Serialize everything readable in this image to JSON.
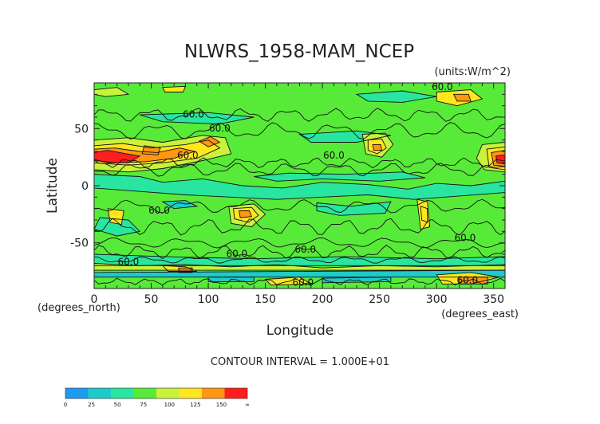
{
  "chart_data": {
    "type": "heatmap",
    "subtype": "filled-contour map",
    "title": "NLWRS_1958-MAM_NCEP",
    "units_label": "(units:W/m^2)",
    "xlabel": "Longitude",
    "ylabel": "Latitude",
    "x_unit_label": "(degrees_east)",
    "y_unit_label": "(degrees_north)",
    "xlim": [
      0,
      360
    ],
    "ylim": [
      -90,
      90
    ],
    "x_ticks": [
      0,
      50,
      100,
      150,
      200,
      250,
      300,
      350
    ],
    "y_ticks": [
      -50,
      0,
      50
    ],
    "contour_interval_text": "CONTOUR INTERVAL = 1.000E+01",
    "contour_labels": [
      {
        "text": "60.0",
        "x": 87,
        "y": 62
      },
      {
        "text": "60.0",
        "x": 110,
        "y": 50
      },
      {
        "text": "60.0",
        "x": 82,
        "y": 26
      },
      {
        "text": "60.0",
        "x": 210,
        "y": 26
      },
      {
        "text": "60.0",
        "x": 57,
        "y": -22
      },
      {
        "text": "60.0",
        "x": 325,
        "y": -46
      },
      {
        "text": "60.0",
        "x": 30,
        "y": -67
      },
      {
        "text": "60.0",
        "x": 125,
        "y": -60
      },
      {
        "text": "60.0",
        "x": 185,
        "y": -56
      },
      {
        "text": "60.0",
        "x": 183,
        "y": -85
      },
      {
        "text": "60.0",
        "x": 305,
        "y": 86
      },
      {
        "text": "60.0",
        "x": 327,
        "y": -83
      }
    ],
    "colorbar": {
      "ticks": [
        "0",
        "25",
        "50",
        "75",
        "100",
        "125",
        "150",
        "∞"
      ],
      "bins": [
        {
          "from": "-∞",
          "to": "0",
          "color": "#1e9bf0"
        },
        {
          "from": "0",
          "to": "25",
          "color": "#1ecbc8"
        },
        {
          "from": "25",
          "to": "50",
          "color": "#28e6a0"
        },
        {
          "from": "50",
          "to": "75",
          "color": "#58ea38"
        },
        {
          "from": "75",
          "to": "100",
          "color": "#c8f23c"
        },
        {
          "from": "100",
          "to": "125",
          "color": "#ffe61e"
        },
        {
          "from": "125",
          "to": "150",
          "color": "#ff9614"
        },
        {
          "from": "150",
          "to": "∞",
          "color": "#ff1e1e"
        }
      ]
    },
    "background_value_range": [
      50,
      75
    ],
    "features": [
      {
        "name": "north-africa-arabia-maximum",
        "center": [
          15,
          25
        ],
        "peak": 160
      },
      {
        "name": "tibet-high-band",
        "center": [
          60,
          30
        ],
        "peak": 130
      },
      {
        "name": "east-asia-patch",
        "center": [
          100,
          40
        ],
        "peak": 120
      },
      {
        "name": "north-america-west",
        "center": [
          245,
          33
        ],
        "peak": 115
      },
      {
        "name": "sahara-east-edge",
        "center": [
          355,
          23
        ],
        "peak": 160
      },
      {
        "name": "australia-patch",
        "center": [
          132,
          -25
        ],
        "peak": 115
      },
      {
        "name": "southern-africa-patch",
        "center": [
          20,
          -27
        ],
        "peak": 100
      },
      {
        "name": "andes-patch",
        "center": [
          291,
          -23
        ],
        "peak": 100
      },
      {
        "name": "tropical-band",
        "center": [
          200,
          5
        ],
        "peak": 45
      },
      {
        "name": "antarctic-edge-mix",
        "center": [
          180,
          -78
        ],
        "peak": 110
      }
    ]
  }
}
